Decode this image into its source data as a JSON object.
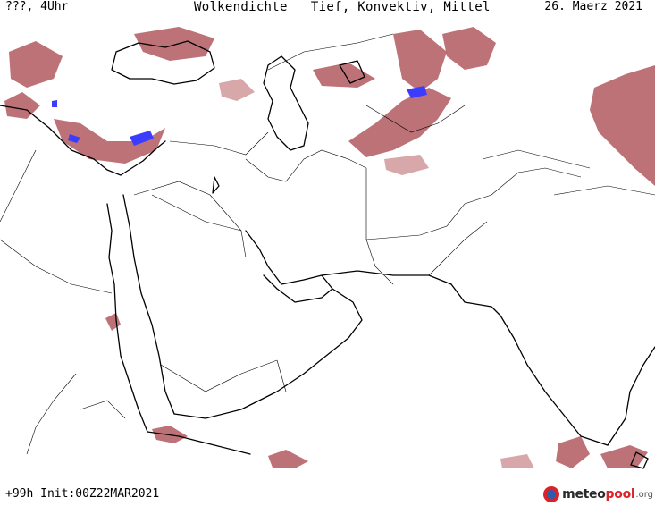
{
  "header": {
    "left": "???, 4Uhr",
    "center": "Wolkendichte   Tief, Konvektiv, Mittel",
    "right": "26. Maerz 2021"
  },
  "footer": {
    "run_info": "+99h Init:00Z22MAR2021"
  },
  "logo": {
    "text_a": "meteo",
    "text_b": "pool",
    "suffix": ".org",
    "icon": "meteopool-logo-icon"
  },
  "colors": {
    "cloud": "#b1595f",
    "cloud_light": "#c98a8e",
    "cloud_dense": "#3c3cff",
    "logo_red": "#d8232a",
    "logo_blue": "#2a5db0"
  }
}
